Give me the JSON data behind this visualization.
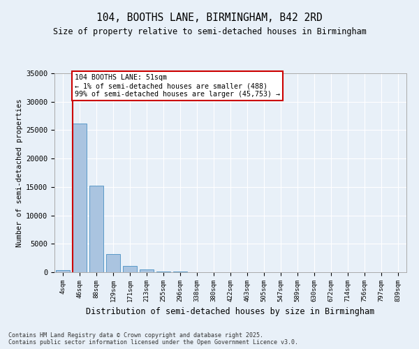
{
  "title1": "104, BOOTHS LANE, BIRMINGHAM, B42 2RD",
  "title2": "Size of property relative to semi-detached houses in Birmingham",
  "xlabel": "Distribution of semi-detached houses by size in Birmingham",
  "ylabel": "Number of semi-detached properties",
  "footer": "Contains HM Land Registry data © Crown copyright and database right 2025.\nContains public sector information licensed under the Open Government Licence v3.0.",
  "bin_labels": [
    "4sqm",
    "46sqm",
    "88sqm",
    "129sqm",
    "171sqm",
    "213sqm",
    "255sqm",
    "296sqm",
    "338sqm",
    "380sqm",
    "422sqm",
    "463sqm",
    "505sqm",
    "547sqm",
    "589sqm",
    "630sqm",
    "672sqm",
    "714sqm",
    "756sqm",
    "797sqm",
    "839sqm"
  ],
  "bar_values": [
    400,
    26200,
    15200,
    3250,
    1100,
    450,
    180,
    80,
    0,
    0,
    0,
    0,
    0,
    0,
    0,
    0,
    0,
    0,
    0,
    0,
    0
  ],
  "bar_color": "#aac4e0",
  "bar_edge_color": "#5a9ac8",
  "property_line_x": 0.57,
  "property_sqm": 51,
  "pct_smaller": 1,
  "pct_larger": 99,
  "n_smaller": 488,
  "n_larger": 45753,
  "annotation_text": "104 BOOTHS LANE: 51sqm\n← 1% of semi-detached houses are smaller (488)\n99% of semi-detached houses are larger (45,753) →",
  "ylim": [
    0,
    35000
  ],
  "yticks": [
    0,
    5000,
    10000,
    15000,
    20000,
    25000,
    30000,
    35000
  ],
  "bg_color": "#e8f0f8",
  "plot_bg_color": "#e8f0f8",
  "grid_color": "#ffffff",
  "red_line_color": "#cc0000",
  "annotation_box_color": "#ffffff",
  "annotation_box_edge": "#cc0000"
}
